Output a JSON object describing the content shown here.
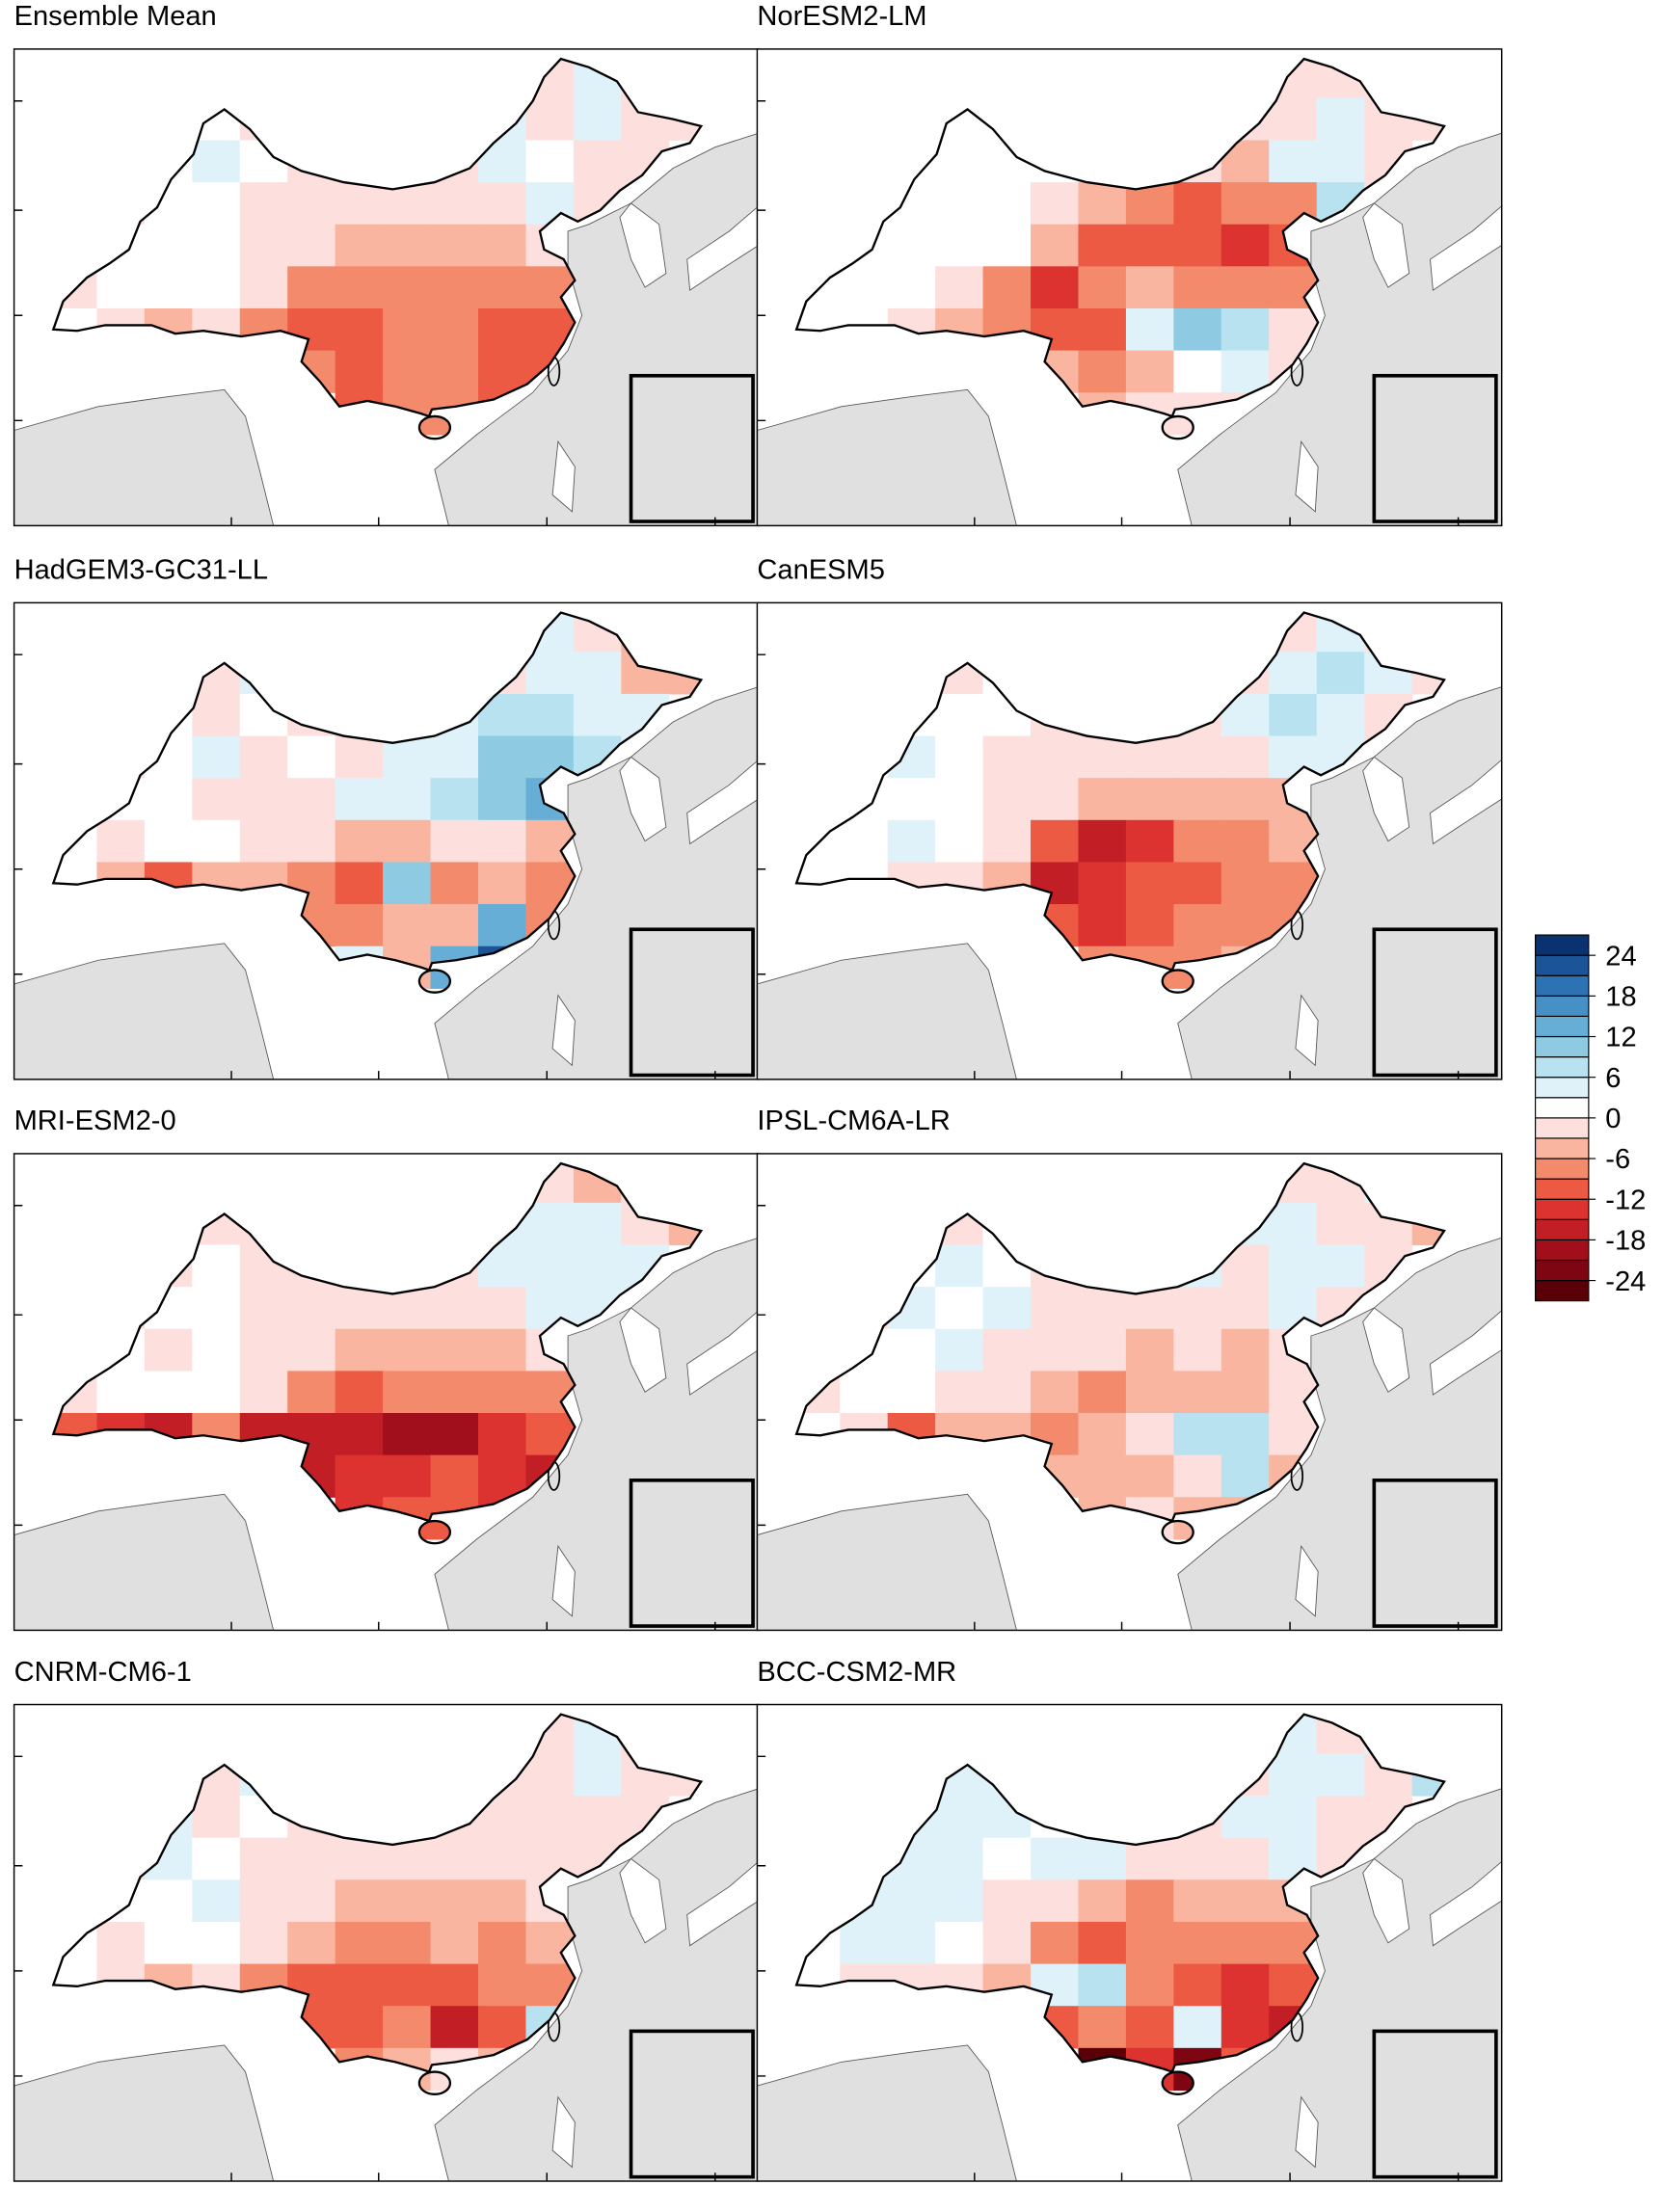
{
  "panels": [
    {
      "title": "Ensemble Mean",
      "grid": [
        [
          null,
          null,
          null,
          null,
          null,
          null,
          null,
          null,
          null,
          null,
          -2,
          4,
          -2,
          null
        ],
        [
          null,
          null,
          null,
          1,
          -1,
          null,
          null,
          null,
          null,
          4,
          -2,
          4,
          -2,
          -2
        ],
        [
          null,
          null,
          1,
          4,
          0,
          -1,
          -2,
          -2,
          -2,
          4,
          1,
          -2,
          -2,
          null
        ],
        [
          null,
          -2,
          0,
          0,
          -2,
          -2,
          -2,
          -3,
          -3,
          -2,
          4,
          -2,
          -2,
          null
        ],
        [
          null,
          0,
          0,
          0,
          -2,
          -3,
          -6,
          -5,
          -6,
          -5,
          -3,
          -2,
          null,
          null
        ],
        [
          -1,
          0,
          0,
          0,
          -2,
          -8,
          -9,
          -7,
          -8,
          -9,
          -8,
          -5,
          null,
          null
        ],
        [
          0,
          -2,
          -5,
          -3,
          -8,
          -10,
          -11,
          -8,
          -9,
          -10,
          -11,
          -8,
          null,
          null
        ],
        [
          null,
          null,
          null,
          null,
          null,
          -8,
          -10,
          -9,
          -9,
          -10,
          -11,
          -10,
          null,
          null
        ],
        [
          null,
          null,
          null,
          null,
          null,
          null,
          -10,
          -8,
          -9,
          -11,
          -6,
          null,
          null,
          null
        ]
      ]
    },
    {
      "title": "NorESM2-LM",
      "grid": [
        [
          null,
          null,
          null,
          null,
          null,
          null,
          null,
          null,
          null,
          null,
          -3,
          -2,
          -3,
          null
        ],
        [
          null,
          null,
          null,
          0,
          0,
          null,
          null,
          null,
          null,
          -2,
          -3,
          4,
          -3,
          -2
        ],
        [
          null,
          null,
          0,
          1,
          0,
          0,
          -2,
          -3,
          -3,
          -5,
          4,
          4,
          -2,
          null
        ],
        [
          null,
          0,
          2,
          0,
          0,
          -3,
          -6,
          -9,
          -10,
          -9,
          -8,
          7,
          -2,
          null
        ],
        [
          null,
          0,
          0,
          0,
          0,
          -6,
          -11,
          -12,
          -12,
          -13,
          -11,
          -6,
          null,
          null
        ],
        [
          0,
          0,
          0,
          -3,
          -8,
          -14,
          -9,
          -6,
          -8,
          -7,
          -9,
          -9,
          null,
          null
        ],
        [
          0,
          0,
          -3,
          -6,
          -9,
          -12,
          -10,
          5,
          10,
          7,
          -3,
          -10,
          null,
          null
        ],
        [
          null,
          null,
          null,
          null,
          null,
          -6,
          -8,
          -4,
          0,
          4,
          -3,
          -6,
          null,
          null
        ],
        [
          null,
          null,
          null,
          null,
          null,
          null,
          -4,
          -2,
          -2,
          -3,
          13,
          null,
          null,
          null
        ]
      ]
    },
    {
      "title": "HadGEM3-GC31-LL",
      "grid": [
        [
          null,
          null,
          null,
          null,
          null,
          null,
          null,
          null,
          null,
          null,
          4,
          -2,
          -5,
          null
        ],
        [
          null,
          null,
          null,
          -2,
          4,
          null,
          null,
          null,
          null,
          -2,
          4,
          4,
          -4,
          -5
        ],
        [
          null,
          null,
          0,
          -2,
          0,
          -2,
          4,
          4,
          4,
          6,
          7,
          5,
          4,
          null
        ],
        [
          null,
          -2,
          0,
          4,
          -2,
          0,
          -2,
          4,
          5,
          9,
          11,
          8,
          4,
          null
        ],
        [
          null,
          0,
          0,
          -2,
          -2,
          -2,
          4,
          4,
          6,
          10,
          12,
          4,
          null,
          null
        ],
        [
          0,
          -2,
          0,
          0,
          -2,
          -3,
          -5,
          -4,
          -3,
          -2,
          -6,
          -5,
          null,
          null
        ],
        [
          0,
          -6,
          -11,
          -5,
          -6,
          -9,
          -12,
          10,
          -8,
          -6,
          -9,
          -12,
          null,
          null
        ],
        [
          null,
          null,
          null,
          null,
          null,
          -8,
          -9,
          -6,
          -5,
          12,
          -8,
          -11,
          null,
          null
        ],
        [
          null,
          null,
          null,
          null,
          null,
          null,
          5,
          -6,
          12,
          22,
          -4,
          null,
          null,
          null
        ]
      ]
    },
    {
      "title": "CanESM5",
      "grid": [
        [
          null,
          null,
          null,
          null,
          null,
          null,
          null,
          null,
          null,
          null,
          -2,
          4,
          -1,
          null
        ],
        [
          null,
          null,
          null,
          -1,
          0,
          null,
          null,
          null,
          null,
          -2,
          4,
          6,
          4,
          -2
        ],
        [
          null,
          null,
          0,
          1,
          0,
          -2,
          -2,
          -1,
          -2,
          4,
          7,
          5,
          -2,
          null
        ],
        [
          null,
          0,
          4,
          0,
          -2,
          -2,
          -2,
          -3,
          -3,
          -3,
          5,
          4,
          -2,
          null
        ],
        [
          null,
          0,
          0,
          0,
          -2,
          -3,
          -4,
          -6,
          -6,
          -6,
          -5,
          -3,
          null,
          null
        ],
        [
          0,
          0,
          4,
          0,
          -3,
          -12,
          -18,
          -15,
          -9,
          -8,
          -6,
          -6,
          null,
          null
        ],
        [
          0,
          0,
          -2,
          -3,
          -5,
          -18,
          -14,
          -12,
          -10,
          -8,
          -7,
          -6,
          null,
          null
        ],
        [
          null,
          null,
          null,
          null,
          null,
          -12,
          -13,
          -11,
          -9,
          -8,
          -7,
          -6,
          null,
          null
        ],
        [
          null,
          null,
          null,
          null,
          null,
          null,
          -9,
          -8,
          -7,
          -6,
          -5,
          null,
          null,
          null
        ]
      ]
    },
    {
      "title": "MRI-ESM2-0",
      "grid": [
        [
          null,
          null,
          null,
          null,
          null,
          null,
          null,
          null,
          null,
          null,
          -3,
          -5,
          -2,
          null
        ],
        [
          null,
          null,
          null,
          -1,
          -2,
          null,
          null,
          null,
          null,
          4,
          4,
          4,
          -3,
          -4
        ],
        [
          null,
          null,
          -2,
          0,
          -1,
          -2,
          -2,
          -2,
          -2,
          4,
          5,
          4,
          4,
          null
        ],
        [
          null,
          -2,
          0,
          0,
          -2,
          -2,
          -3,
          -3,
          -3,
          -2,
          4,
          5,
          4,
          null
        ],
        [
          null,
          0,
          -3,
          0,
          -2,
          -2,
          -6,
          -6,
          -5,
          -4,
          -3,
          -2,
          null,
          null
        ],
        [
          -2,
          0,
          0,
          0,
          -3,
          -9,
          -11,
          -8,
          -8,
          -9,
          -8,
          -7,
          null,
          null
        ],
        [
          -12,
          -15,
          -18,
          -9,
          -17,
          -18,
          -16,
          -20,
          -19,
          -15,
          -12,
          -9,
          null,
          null
        ],
        [
          null,
          null,
          null,
          null,
          null,
          -18,
          -14,
          -13,
          -12,
          -15,
          -18,
          -12,
          null,
          null
        ],
        [
          null,
          null,
          null,
          null,
          null,
          null,
          -15,
          -12,
          -10,
          -13,
          -8,
          null,
          null,
          null
        ]
      ]
    },
    {
      "title": "IPSL-CM6A-LR",
      "grid": [
        [
          null,
          null,
          null,
          null,
          null,
          null,
          null,
          null,
          null,
          null,
          -2,
          -3,
          4,
          null
        ],
        [
          null,
          null,
          null,
          -2,
          0,
          null,
          null,
          null,
          null,
          4,
          4,
          -3,
          -2,
          -4
        ],
        [
          null,
          null,
          0,
          4,
          0,
          -2,
          -1,
          -2,
          4,
          -2,
          4,
          4,
          -2,
          null
        ],
        [
          null,
          -2,
          4,
          0,
          4,
          -2,
          -2,
          -3,
          -2,
          -2,
          5,
          -2,
          -2,
          null
        ],
        [
          null,
          0,
          0,
          4,
          -2,
          -2,
          -3,
          -4,
          -3,
          -4,
          -3,
          -2,
          null,
          null
        ],
        [
          -2,
          0,
          0,
          -2,
          -3,
          -6,
          -9,
          -5,
          -4,
          -5,
          -3,
          -4,
          null,
          null
        ],
        [
          0,
          -2,
          -12,
          -5,
          -6,
          -9,
          -5,
          -3,
          6,
          8,
          -3,
          -5,
          null,
          null
        ],
        [
          null,
          null,
          null,
          null,
          null,
          -6,
          -6,
          -5,
          -3,
          7,
          -4,
          -5,
          null,
          null
        ],
        [
          null,
          null,
          null,
          null,
          null,
          null,
          -5,
          -3,
          -4,
          -6,
          -2,
          null,
          null,
          null
        ]
      ]
    },
    {
      "title": "CNRM-CM6-1",
      "grid": [
        [
          null,
          null,
          null,
          null,
          null,
          null,
          null,
          null,
          null,
          null,
          -2,
          4,
          -3,
          null
        ],
        [
          null,
          null,
          null,
          -2,
          4,
          null,
          null,
          null,
          null,
          -2,
          -1,
          4,
          -2,
          -2
        ],
        [
          null,
          null,
          4,
          -2,
          0,
          -2,
          -2,
          -2,
          -2,
          -3,
          -2,
          -3,
          -2,
          null
        ],
        [
          null,
          -2,
          4,
          0,
          -2,
          -2,
          -2,
          -3,
          -3,
          -3,
          -2,
          -2,
          -2,
          null
        ],
        [
          null,
          0,
          0,
          4,
          -2,
          -3,
          -5,
          -6,
          -4,
          -5,
          -3,
          -2,
          null,
          null
        ],
        [
          0,
          -2,
          0,
          0,
          -2,
          -6,
          -8,
          -7,
          -6,
          -8,
          -6,
          -5,
          null,
          null
        ],
        [
          0,
          -2,
          -6,
          -3,
          -8,
          -11,
          -10,
          -12,
          -11,
          -9,
          -8,
          -7,
          null,
          null
        ],
        [
          null,
          null,
          null,
          null,
          null,
          -12,
          -11,
          -9,
          -18,
          -10,
          7,
          -8,
          null,
          null
        ],
        [
          null,
          null,
          null,
          null,
          null,
          null,
          -9,
          -5,
          -2,
          -6,
          -3,
          null,
          null,
          null
        ]
      ]
    },
    {
      "title": "BCC-CSM2-MR",
      "grid": [
        [
          null,
          null,
          null,
          null,
          null,
          null,
          null,
          null,
          null,
          null,
          4,
          -2,
          4,
          null
        ],
        [
          null,
          null,
          null,
          4,
          4,
          null,
          null,
          null,
          null,
          -2,
          4,
          4,
          -2,
          6
        ],
        [
          null,
          null,
          4,
          4,
          4,
          0,
          4,
          -2,
          -2,
          4,
          4,
          -2,
          -2,
          null
        ],
        [
          null,
          4,
          4,
          4,
          0,
          4,
          4,
          -2,
          -3,
          -2,
          4,
          -2,
          -2,
          null
        ],
        [
          null,
          4,
          4,
          4,
          -2,
          -2,
          -5,
          -8,
          -6,
          -6,
          -4,
          -2,
          null,
          null
        ],
        [
          0,
          4,
          4,
          0,
          -2,
          -8,
          -10,
          -9,
          -9,
          -8,
          -9,
          -6,
          null,
          null
        ],
        [
          0,
          -2,
          -2,
          -3,
          -6,
          5,
          7,
          -8,
          -12,
          -14,
          -12,
          -8,
          null,
          null
        ],
        [
          null,
          null,
          null,
          null,
          null,
          -12,
          -8,
          -10,
          5,
          -14,
          -16,
          -12,
          null,
          null
        ],
        [
          null,
          null,
          null,
          null,
          null,
          null,
          -25,
          -15,
          -22,
          -12,
          -8,
          null,
          null,
          null
        ]
      ]
    }
  ],
  "colorbar": {
    "levels": [
      -24,
      -21,
      -18,
      -15,
      -12,
      -9,
      -6,
      -3,
      0,
      3,
      6,
      9,
      12,
      15,
      18,
      21,
      24
    ],
    "colors": [
      "#5a0008",
      "#7e0612",
      "#a10f1c",
      "#c21e26",
      "#dc3330",
      "#ec5a44",
      "#f48a6c",
      "#f9b5a0",
      "#fde0dd",
      "#ffffff",
      "#dff2fa",
      "#b9e2f0",
      "#8ecbe3",
      "#66aed5",
      "#4790c5",
      "#2d72b3",
      "#1b5598",
      "#0a3270"
    ],
    "ticks": [
      24,
      18,
      12,
      6,
      0,
      -6,
      -12,
      -18,
      -24
    ]
  }
}
